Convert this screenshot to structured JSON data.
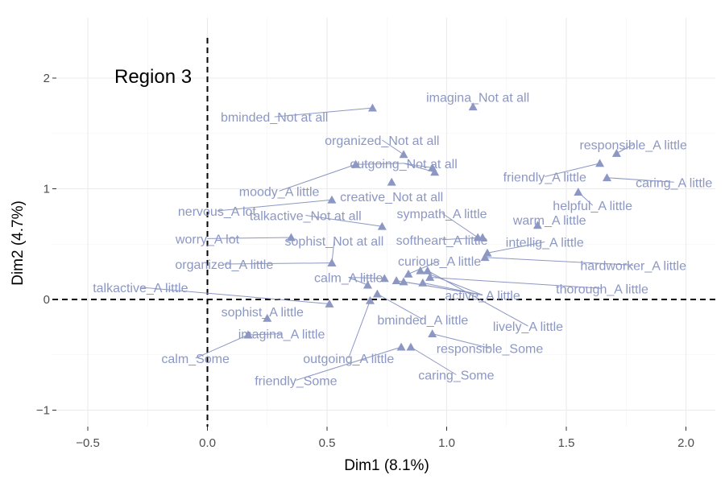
{
  "chart_data": {
    "type": "scatter",
    "title": "",
    "annotation": "Region 3",
    "xlabel": "Dim1 (8.1%)",
    "ylabel": "Dim2 (4.7%)",
    "xlim": [
      -0.62,
      2.12
    ],
    "ylim": [
      -1.12,
      2.32
    ],
    "xticks": [
      -0.5,
      0.0,
      0.5,
      1.0,
      1.5,
      2.0
    ],
    "xtick_labels": [
      "−0.5",
      "0.0",
      "0.5",
      "1.0",
      "1.5",
      "2.0"
    ],
    "yticks": [
      -1,
      0,
      1,
      2
    ],
    "ytick_labels": [
      "−1",
      "0",
      "1",
      "2"
    ],
    "reference_lines": {
      "x": 0,
      "y": 0
    },
    "grid": true,
    "point_color": "#8c97c3",
    "marker": "triangle",
    "points": [
      {
        "label": "imagina_Not at all",
        "x": 1.11,
        "y": 1.74,
        "lx": 1.13,
        "ly": 1.83
      },
      {
        "label": "bminded_Not at all",
        "x": 0.69,
        "y": 1.73,
        "lx": 0.28,
        "ly": 1.65
      },
      {
        "label": "organized_Not at all",
        "x": 0.82,
        "y": 1.31,
        "lx": 0.73,
        "ly": 1.44
      },
      {
        "label": "outgoing_Not at all",
        "x": 0.62,
        "y": 1.22,
        "lx": 0.82,
        "ly": 1.23
      },
      {
        "label": "outgoing_Not at all",
        "x": 0.95,
        "y": 1.15,
        "lx": 0.82,
        "ly": 1.23
      },
      {
        "label": "outgoing_Not at all",
        "x": 0.94,
        "y": 1.19,
        "lx": 0.82,
        "ly": 1.23
      },
      {
        "label": "responsible_A little",
        "x": 1.71,
        "y": 1.32,
        "lx": 1.78,
        "ly": 1.4
      },
      {
        "label": "friendly_A little",
        "x": 1.64,
        "y": 1.23,
        "lx": 1.41,
        "ly": 1.11
      },
      {
        "label": "caring_A little",
        "x": 1.67,
        "y": 1.1,
        "lx": 1.95,
        "ly": 1.06
      },
      {
        "label": "moody_A little",
        "x": 0.62,
        "y": 1.22,
        "lx": 0.3,
        "ly": 0.98
      },
      {
        "label": "creative_Not at all",
        "x": 0.77,
        "y": 1.06,
        "lx": 0.77,
        "ly": 0.93
      },
      {
        "label": "helpful_A little",
        "x": 1.55,
        "y": 0.97,
        "lx": 1.61,
        "ly": 0.85
      },
      {
        "label": "nervous_A lot",
        "x": 0.52,
        "y": 0.9,
        "lx": 0.04,
        "ly": 0.8
      },
      {
        "label": "talkactive_Not at all",
        "x": 0.73,
        "y": 0.66,
        "lx": 0.41,
        "ly": 0.76
      },
      {
        "label": "sympath_A little",
        "x": 1.13,
        "y": 0.56,
        "lx": 0.98,
        "ly": 0.78
      },
      {
        "label": "warm_A little",
        "x": 1.38,
        "y": 0.67,
        "lx": 1.43,
        "ly": 0.72
      },
      {
        "label": "worry_A lot",
        "x": 0.35,
        "y": 0.56,
        "lx": 0.0,
        "ly": 0.55
      },
      {
        "label": "sophist_Not at all",
        "x": 0.52,
        "y": 0.33,
        "lx": 0.53,
        "ly": 0.53
      },
      {
        "label": "softheart_A little",
        "x": 1.15,
        "y": 0.56,
        "lx": 0.98,
        "ly": 0.54
      },
      {
        "label": "intellig_A little",
        "x": 1.17,
        "y": 0.42,
        "lx": 1.41,
        "ly": 0.52
      },
      {
        "label": "organized_A little",
        "x": 0.52,
        "y": 0.33,
        "lx": 0.07,
        "ly": 0.32
      },
      {
        "label": "hardworker_A little",
        "x": 1.16,
        "y": 0.38,
        "lx": 1.78,
        "ly": 0.31
      },
      {
        "label": "curious_A little",
        "x": 0.84,
        "y": 0.23,
        "lx": 0.97,
        "ly": 0.35
      },
      {
        "label": "calm_A little",
        "x": 0.74,
        "y": 0.19,
        "lx": 0.59,
        "ly": 0.2
      },
      {
        "label": "calm_A little",
        "x": 0.67,
        "y": 0.13,
        "lx": 0.59,
        "ly": 0.2
      },
      {
        "label": "thorough_A little",
        "x": 0.93,
        "y": 0.2,
        "lx": 1.65,
        "ly": 0.1
      },
      {
        "label": "talkactive_A little",
        "x": 0.51,
        "y": -0.04,
        "lx": -0.28,
        "ly": 0.11
      },
      {
        "label": "active_A little",
        "x": 0.9,
        "y": 0.15,
        "lx": 1.15,
        "ly": 0.04
      },
      {
        "label": "active_A little",
        "x": 0.82,
        "y": 0.16,
        "lx": 1.15,
        "ly": 0.04
      },
      {
        "label": "active_A little",
        "x": 0.89,
        "y": 0.26,
        "lx": 1.15,
        "ly": 0.04
      },
      {
        "label": "active_A little",
        "x": 0.79,
        "y": 0.17,
        "lx": 1.15,
        "ly": 0.04
      },
      {
        "label": "sophist_A little",
        "x": 0.25,
        "y": -0.17,
        "lx": 0.23,
        "ly": -0.11
      },
      {
        "label": "bminded_A little",
        "x": 0.71,
        "y": 0.05,
        "lx": 0.9,
        "ly": -0.18
      },
      {
        "label": "lively_A little",
        "x": 0.92,
        "y": 0.26,
        "lx": 1.34,
        "ly": -0.24
      },
      {
        "label": "imagina_A little",
        "x": 0.17,
        "y": -0.32,
        "lx": 0.31,
        "ly": -0.31
      },
      {
        "label": "responsible_Some",
        "x": 0.94,
        "y": -0.31,
        "lx": 1.18,
        "ly": -0.44
      },
      {
        "label": "calm_Some",
        "x": 0.17,
        "y": -0.32,
        "lx": -0.05,
        "ly": -0.53
      },
      {
        "label": "outgoing_A little",
        "x": 0.68,
        "y": -0.01,
        "lx": 0.59,
        "ly": -0.53
      },
      {
        "label": "caring_Some",
        "x": 0.85,
        "y": -0.43,
        "lx": 1.04,
        "ly": -0.68
      },
      {
        "label": "friendly_Some",
        "x": 0.81,
        "y": -0.43,
        "lx": 0.37,
        "ly": -0.73
      }
    ]
  }
}
